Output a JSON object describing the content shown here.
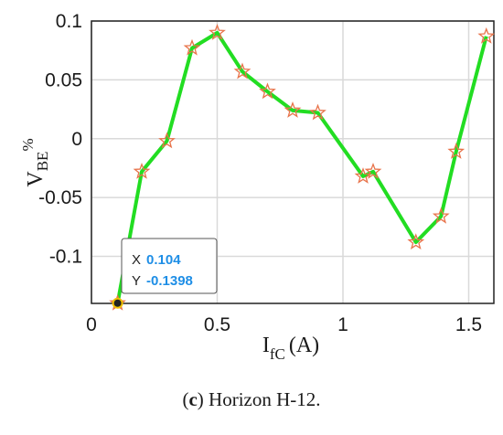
{
  "chart_data": {
    "type": "line",
    "series": [
      {
        "x": [
          0.104,
          0.2,
          0.3,
          0.4,
          0.5,
          0.6,
          0.7,
          0.8,
          0.9,
          1.08,
          1.12,
          1.29,
          1.39,
          1.45,
          1.57
        ],
        "y": [
          -0.1398,
          -0.028,
          -0.002,
          0.077,
          0.09,
          0.057,
          0.04,
          0.024,
          0.022,
          -0.032,
          -0.028,
          -0.088,
          -0.066,
          -0.011,
          0.087
        ],
        "color": "#22dd22",
        "marker": "star",
        "marker_color": "#e8734a"
      }
    ],
    "xlim": [
      0,
      1.6
    ],
    "ylim": [
      -0.14,
      0.1
    ],
    "xticks": [
      "0",
      "0.5",
      "1",
      "1.5"
    ],
    "yticks": [
      "0.1",
      "0.05",
      "0",
      "-0.05",
      "-0.1"
    ],
    "xlabel": {
      "main": "I",
      "sub": "fC",
      "unit": "(A)"
    },
    "ylabel": {
      "main": "V",
      "sub": "BE",
      "unit": "%"
    },
    "grid": true
  },
  "datatip": {
    "x_key": "X",
    "x_value": "0.104",
    "y_key": "Y",
    "y_value": "-0.1398"
  },
  "caption": {
    "letter": "c",
    "text": " Horizon H-12."
  }
}
